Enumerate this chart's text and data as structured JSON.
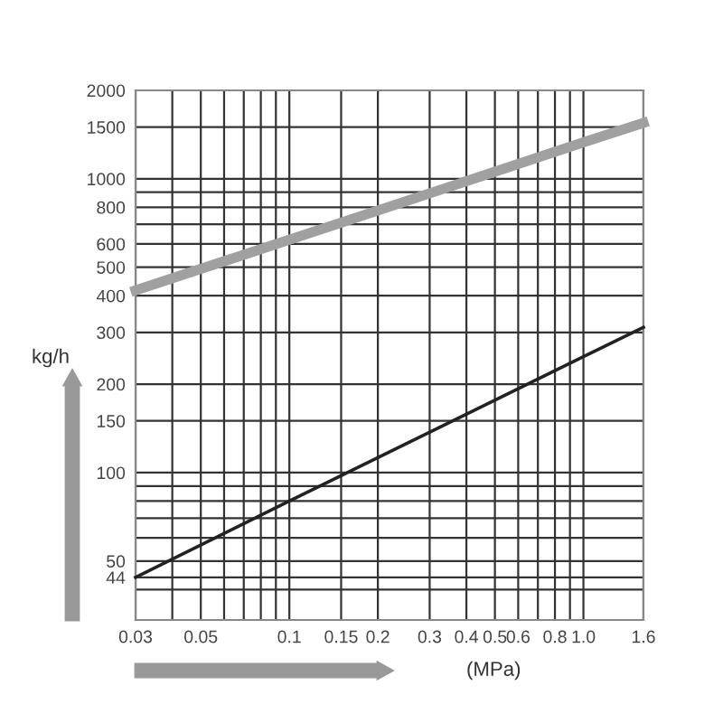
{
  "chart_data": {
    "type": "line",
    "xlabel": "(MPa)",
    "ylabel": "kg/h",
    "log": "xy",
    "grid": true,
    "marker": "none",
    "line_style": "solid",
    "xlim": [
      0.03,
      1.6
    ],
    "ylim": [
      31.5,
      2000
    ],
    "xticks": [
      0.03,
      {
        "value": 0.04,
        "label": null
      },
      0.05,
      {
        "value": 0.06,
        "label": null
      },
      {
        "value": 0.07,
        "label": null
      },
      {
        "value": 0.08,
        "label": null
      },
      {
        "value": 0.09,
        "label": null
      },
      0.1,
      0.15,
      0.2,
      0.3,
      0.4,
      0.5,
      0.6,
      {
        "value": 0.7,
        "label": null
      },
      0.8,
      {
        "value": 0.9,
        "label": null
      },
      {
        "value": 1.0,
        "label": "1.0"
      },
      1.6
    ],
    "yticks": [
      {
        "value": 40,
        "label": null
      },
      44,
      50,
      {
        "value": 60,
        "label": null
      },
      {
        "value": 70,
        "label": null
      },
      {
        "value": 80,
        "label": null
      },
      {
        "value": 90,
        "label": null
      },
      100,
      150,
      200,
      300,
      400,
      500,
      600,
      {
        "value": 700,
        "label": null
      },
      800,
      {
        "value": 900,
        "label": null
      },
      1000,
      1500,
      2000
    ],
    "series": [
      {
        "color": "#a0a0a0",
        "x": [
          0.03,
          0.1,
          1.0,
          1.6
        ],
        "values": [
          417,
          620,
          1330,
          1550
        ]
      },
      {
        "color": "#222222",
        "x": [
          0.03,
          0.1,
          1.0,
          1.6
        ],
        "values": [
          44,
          80,
          248,
          312
        ]
      }
    ]
  }
}
